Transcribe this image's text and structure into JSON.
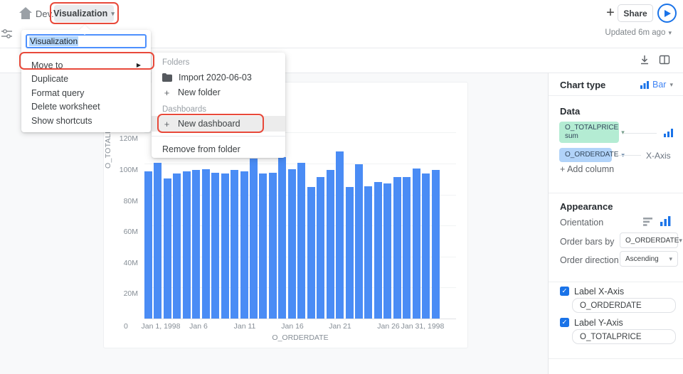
{
  "header": {
    "breadcrumb": "Dev.IO",
    "doc_title": "Visualization",
    "share_label": "Share",
    "updated": "Updated 6m ago"
  },
  "menu": {
    "rename_value": "Visualization",
    "items": [
      {
        "label": "Move to",
        "has_submenu": true
      },
      {
        "label": "Duplicate",
        "has_submenu": false
      },
      {
        "label": "Format query",
        "has_submenu": false
      },
      {
        "label": "Delete worksheet",
        "has_submenu": false
      },
      {
        "label": "Show shortcuts",
        "has_submenu": false
      }
    ],
    "submenu": {
      "folders_header": "Folders",
      "folder_item": "Import 2020-06-03",
      "new_folder": "New folder",
      "dashboards_header": "Dashboards",
      "new_dashboard": "New dashboard",
      "remove_item": "Remove from folder"
    }
  },
  "panel": {
    "chart_type_label": "Chart type",
    "chart_type_value": "Bar",
    "data_header": "Data",
    "y_column": "O_TOTALPRICE",
    "y_agg": "sum",
    "x_column": "O_ORDERDATE",
    "x_axis_tag": "X-Axis",
    "add_column": "+ Add column",
    "appearance_header": "Appearance",
    "orientation_label": "Orientation",
    "order_bars_label": "Order bars by",
    "order_bars_value": "O_ORDERDATE",
    "order_dir_label": "Order direction",
    "order_dir_value": "Ascending",
    "label_x": "Label X-Axis",
    "label_x_value": "O_ORDERDATE",
    "label_y": "Label Y-Axis",
    "label_y_value": "O_TOTALPRICE"
  },
  "chart_data": {
    "type": "bar",
    "xlabel": "O_ORDERDATE",
    "ylabel": "O_TOTALPRICE",
    "x": [
      "Jan 1, 1998",
      "Jan 2, 1998",
      "Jan 3, 1998",
      "Jan 4, 1998",
      "Jan 5, 1998",
      "Jan 6, 1998",
      "Jan 7, 1998",
      "Jan 8, 1998",
      "Jan 9, 1998",
      "Jan 10, 1998",
      "Jan 11, 1998",
      "Jan 12, 1998",
      "Jan 13, 1998",
      "Jan 14, 1998",
      "Jan 15, 1998",
      "Jan 16, 1998",
      "Jan 17, 1998",
      "Jan 18, 1998",
      "Jan 19, 1998",
      "Jan 20, 1998",
      "Jan 21, 1998",
      "Jan 22, 1998",
      "Jan 23, 1998",
      "Jan 24, 1998",
      "Jan 25, 1998",
      "Jan 26, 1998",
      "Jan 27, 1998",
      "Jan 28, 1998",
      "Jan 29, 1998",
      "Jan 30, 1998",
      "Jan 31, 1998"
    ],
    "values_millions": [
      95,
      100.5,
      90.5,
      93.5,
      95,
      96,
      96.5,
      94,
      93.5,
      96,
      95,
      103,
      93.5,
      94,
      104,
      96.5,
      100.5,
      85,
      91.5,
      96,
      108,
      85,
      99.5,
      85.5,
      88,
      87,
      91.5,
      91.5,
      97,
      93.5,
      96
    ],
    "ylim_millions": [
      0,
      120
    ],
    "yticks": [
      "120M",
      "100M",
      "80M",
      "60M",
      "40M",
      "20M",
      "0"
    ],
    "xticks": [
      "Jan 1, 1998",
      "Jan 6",
      "Jan 11",
      "Jan 16",
      "Jan 21",
      "Jan 26",
      "Jan 31, 1998"
    ],
    "grid": "horizontal",
    "legend": "none",
    "bar_color": "#4a8cf5"
  },
  "colors": {
    "accent_blue": "#1a73e8",
    "link_blue": "#4285f4",
    "bar_fill": "#4a8cf5",
    "annotation_red": "#e8493a",
    "pill_green": "#b4ecd3",
    "pill_blue": "#b1d3f9"
  }
}
